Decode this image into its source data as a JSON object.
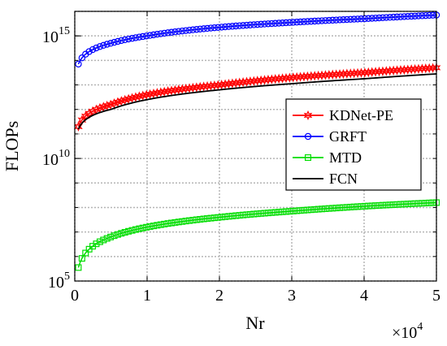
{
  "chart_data": {
    "type": "line",
    "xlabel": "Nr",
    "ylabel": "FLOPs",
    "x_multiplier_label": "×10",
    "x_multiplier_exp": "4",
    "x_scale": 10000,
    "xlim": [
      0,
      5
    ],
    "ylim_log10": [
      5,
      16
    ],
    "yscale": "log",
    "x_ticks": [
      "0",
      "1",
      "2",
      "3",
      "4",
      "5"
    ],
    "y_ticks": [
      {
        "base": "10",
        "exp": "5",
        "log10": 5
      },
      {
        "base": "10",
        "exp": "10",
        "log10": 10
      },
      {
        "base": "10",
        "exp": "15",
        "log10": 15
      }
    ],
    "grid": true,
    "legend_position": "right",
    "series": [
      {
        "name": "KDNet-PE",
        "color": "#ff0000",
        "marker": "hexagram",
        "log10_at_x": [
          [
            0.05,
            11.3
          ],
          [
            0.5,
            12.2
          ],
          [
            1,
            12.6
          ],
          [
            2,
            13.0
          ],
          [
            3,
            13.3
          ],
          [
            4,
            13.5
          ],
          [
            5,
            13.7
          ]
        ]
      },
      {
        "name": "GRFT",
        "color": "#0000ff",
        "marker": "circle",
        "log10_at_x": [
          [
            0.05,
            13.85
          ],
          [
            0.5,
            14.7
          ],
          [
            1,
            15.0
          ],
          [
            2,
            15.35
          ],
          [
            3,
            15.55
          ],
          [
            4,
            15.7
          ],
          [
            5,
            15.85
          ]
        ]
      },
      {
        "name": "MTD",
        "color": "#00dd00",
        "marker": "square",
        "log10_at_x": [
          [
            0.05,
            5.55
          ],
          [
            0.5,
            6.8
          ],
          [
            1,
            7.2
          ],
          [
            2,
            7.6
          ],
          [
            3,
            7.85
          ],
          [
            4,
            8.05
          ],
          [
            5,
            8.2
          ]
        ]
      },
      {
        "name": "FCN",
        "color": "#000000",
        "marker": "none",
        "log10_at_x": [
          [
            0.05,
            11.2
          ],
          [
            0.5,
            12.0
          ],
          [
            1,
            12.4
          ],
          [
            2,
            12.8
          ],
          [
            3,
            13.05
          ],
          [
            4,
            13.25
          ],
          [
            5,
            13.45
          ]
        ]
      }
    ]
  }
}
